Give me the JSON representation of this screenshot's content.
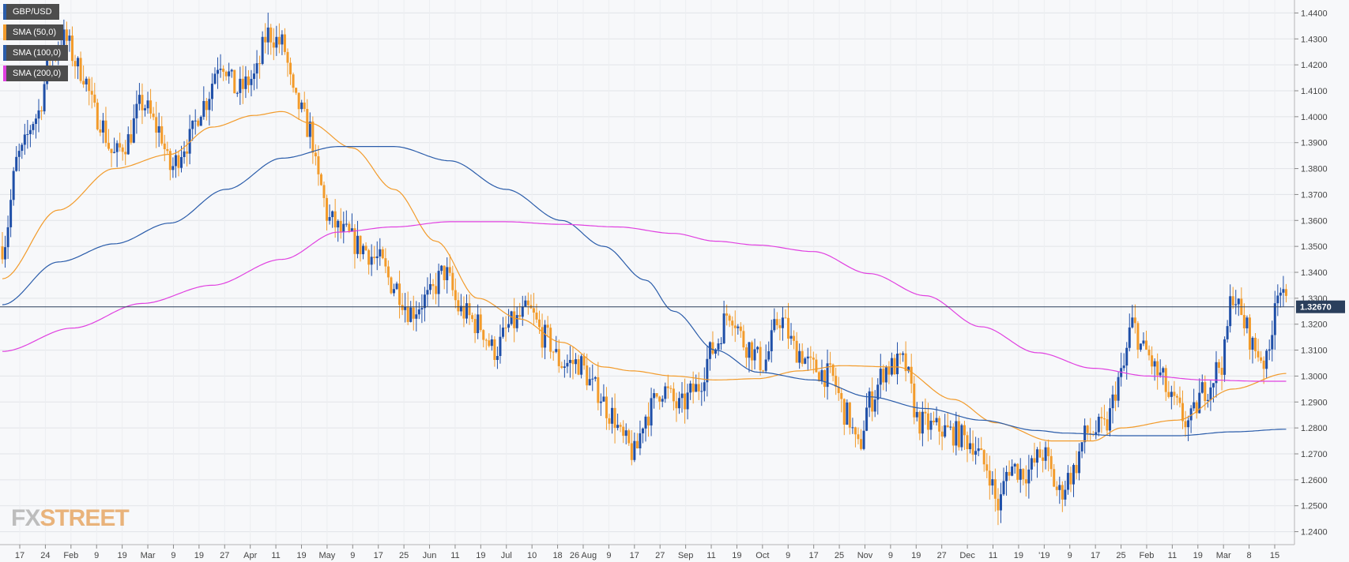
{
  "chart_data": {
    "type": "candlestick",
    "symbol": "GBP/USD",
    "ylim": [
      1.235,
      1.445
    ],
    "yticks": [
      1.24,
      1.25,
      1.26,
      1.27,
      1.28,
      1.29,
      1.3,
      1.31,
      1.32,
      1.33,
      1.34,
      1.35,
      1.36,
      1.37,
      1.38,
      1.39,
      1.4,
      1.41,
      1.42,
      1.43,
      1.44
    ],
    "last_price": "1.32670",
    "last_price_value": 1.3267,
    "x_tick_labels": [
      "17",
      "24",
      "Feb",
      "9",
      "19",
      "Mar",
      "9",
      "19",
      "27",
      "Apr",
      "11",
      "19",
      "May",
      "9",
      "17",
      "25",
      "Jun",
      "11",
      "19",
      "Jul",
      "10",
      "18",
      "26 Aug",
      "9",
      "17",
      "27",
      "Sep",
      "11",
      "19",
      "Oct",
      "9",
      "17",
      "25",
      "Nov",
      "9",
      "19",
      "27",
      "Dec",
      "11",
      "19",
      "'19",
      "9",
      "17",
      "25",
      "Feb",
      "11",
      "19",
      "Mar",
      "8",
      "15"
    ],
    "legend": [
      {
        "label": "GBP/USD",
        "color": "#2a5caa"
      },
      {
        "label": "SMA (50,0)",
        "color": "#f29b2b"
      },
      {
        "label": "SMA (100,0)",
        "color": "#2a5caa"
      },
      {
        "label": "SMA (200,0)",
        "color": "#e040e0"
      }
    ],
    "up_color": "#1f4fa8",
    "down_color": "#f29b2b",
    "series_anchors": {
      "price": [
        [
          0,
          1.35
        ],
        [
          6,
          1.385
        ],
        [
          12,
          1.4
        ],
        [
          18,
          1.425
        ],
        [
          22,
          1.43
        ],
        [
          28,
          1.418
        ],
        [
          34,
          1.4
        ],
        [
          40,
          1.385
        ],
        [
          44,
          1.39
        ],
        [
          50,
          1.405
        ],
        [
          56,
          1.395
        ],
        [
          60,
          1.38
        ],
        [
          66,
          1.39
        ],
        [
          72,
          1.405
        ],
        [
          78,
          1.422
        ],
        [
          84,
          1.41
        ],
        [
          90,
          1.415
        ],
        [
          95,
          1.432
        ],
        [
          100,
          1.428
        ],
        [
          105,
          1.405
        ],
        [
          110,
          1.395
        ],
        [
          113,
          1.375
        ],
        [
          117,
          1.36
        ],
        [
          122,
          1.355
        ],
        [
          128,
          1.35
        ],
        [
          134,
          1.345
        ],
        [
          140,
          1.335
        ],
        [
          146,
          1.325
        ],
        [
          152,
          1.33
        ],
        [
          158,
          1.34
        ],
        [
          164,
          1.325
        ],
        [
          170,
          1.32
        ],
        [
          176,
          1.31
        ],
        [
          182,
          1.32
        ],
        [
          188,
          1.325
        ],
        [
          194,
          1.315
        ],
        [
          200,
          1.305
        ],
        [
          206,
          1.305
        ],
        [
          212,
          1.295
        ],
        [
          218,
          1.285
        ],
        [
          222,
          1.275
        ],
        [
          226,
          1.27
        ],
        [
          230,
          1.285
        ],
        [
          236,
          1.295
        ],
        [
          242,
          1.288
        ],
        [
          248,
          1.295
        ],
        [
          254,
          1.31
        ],
        [
          260,
          1.325
        ],
        [
          266,
          1.312
        ],
        [
          272,
          1.305
        ],
        [
          278,
          1.322
        ],
        [
          284,
          1.31
        ],
        [
          290,
          1.303
        ],
        [
          296,
          1.3
        ],
        [
          302,
          1.285
        ],
        [
          306,
          1.272
        ],
        [
          310,
          1.29
        ],
        [
          316,
          1.303
        ],
        [
          322,
          1.305
        ],
        [
          328,
          1.282
        ],
        [
          334,
          1.28
        ],
        [
          340,
          1.278
        ],
        [
          346,
          1.275
        ],
        [
          352,
          1.265
        ],
        [
          356,
          1.25
        ],
        [
          360,
          1.265
        ],
        [
          366,
          1.263
        ],
        [
          372,
          1.27
        ],
        [
          378,
          1.255
        ],
        [
          382,
          1.262
        ],
        [
          388,
          1.278
        ],
        [
          394,
          1.28
        ],
        [
          400,
          1.3
        ],
        [
          404,
          1.32
        ],
        [
          408,
          1.31
        ],
        [
          414,
          1.3
        ],
        [
          418,
          1.29
        ],
        [
          424,
          1.282
        ],
        [
          430,
          1.295
        ],
        [
          436,
          1.305
        ],
        [
          440,
          1.332
        ],
        [
          444,
          1.32
        ],
        [
          448,
          1.31
        ],
        [
          452,
          1.305
        ],
        [
          456,
          1.335
        ],
        [
          459,
          1.327
        ]
      ],
      "sma50": [
        [
          0,
          1.3375
        ],
        [
          20,
          1.364
        ],
        [
          40,
          1.38
        ],
        [
          60,
          1.3855
        ],
        [
          75,
          1.396
        ],
        [
          90,
          1.4005
        ],
        [
          100,
          1.402
        ],
        [
          110,
          1.3975
        ],
        [
          125,
          1.388
        ],
        [
          140,
          1.372
        ],
        [
          155,
          1.352
        ],
        [
          170,
          1.33
        ],
        [
          185,
          1.322
        ],
        [
          200,
          1.313
        ],
        [
          215,
          1.3035
        ],
        [
          225,
          1.302
        ],
        [
          240,
          1.3
        ],
        [
          255,
          1.2985
        ],
        [
          270,
          1.299
        ],
        [
          285,
          1.302
        ],
        [
          300,
          1.304
        ],
        [
          320,
          1.3035
        ],
        [
          340,
          1.291
        ],
        [
          355,
          1.282
        ],
        [
          375,
          1.275
        ],
        [
          390,
          1.275
        ],
        [
          400,
          1.28
        ],
        [
          420,
          1.283
        ],
        [
          440,
          1.295
        ],
        [
          459,
          1.301
        ]
      ],
      "sma100": [
        [
          0,
          1.3275
        ],
        [
          20,
          1.344
        ],
        [
          40,
          1.351
        ],
        [
          60,
          1.359
        ],
        [
          80,
          1.372
        ],
        [
          100,
          1.384
        ],
        [
          120,
          1.3885
        ],
        [
          140,
          1.3885
        ],
        [
          160,
          1.383
        ],
        [
          180,
          1.372
        ],
        [
          200,
          1.36
        ],
        [
          215,
          1.35
        ],
        [
          230,
          1.337
        ],
        [
          240,
          1.325
        ],
        [
          255,
          1.31
        ],
        [
          270,
          1.3015
        ],
        [
          290,
          1.2985
        ],
        [
          310,
          1.292
        ],
        [
          330,
          1.2875
        ],
        [
          350,
          1.283
        ],
        [
          370,
          1.279
        ],
        [
          380,
          1.278
        ],
        [
          400,
          1.277
        ],
        [
          420,
          1.277
        ],
        [
          440,
          1.2785
        ],
        [
          459,
          1.2795
        ]
      ],
      "sma200": [
        [
          0,
          1.3095
        ],
        [
          25,
          1.3185
        ],
        [
          50,
          1.328
        ],
        [
          75,
          1.335
        ],
        [
          100,
          1.345
        ],
        [
          120,
          1.3555
        ],
        [
          140,
          1.3575
        ],
        [
          160,
          1.3595
        ],
        [
          180,
          1.3595
        ],
        [
          200,
          1.3585
        ],
        [
          220,
          1.3575
        ],
        [
          240,
          1.355
        ],
        [
          255,
          1.352
        ],
        [
          270,
          1.3505
        ],
        [
          290,
          1.348
        ],
        [
          310,
          1.3395
        ],
        [
          330,
          1.331
        ],
        [
          350,
          1.319
        ],
        [
          370,
          1.309
        ],
        [
          390,
          1.303
        ],
        [
          410,
          1.3
        ],
        [
          430,
          1.2985
        ],
        [
          450,
          1.298
        ],
        [
          459,
          1.298
        ]
      ]
    }
  },
  "logo": {
    "fx": "FX",
    "rest": "STREET"
  }
}
